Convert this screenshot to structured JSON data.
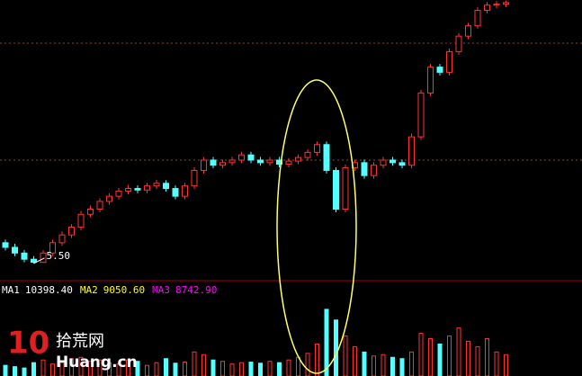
{
  "chart_data": {
    "type": "candlestick",
    "up_color": "#ff3232",
    "down_color": "#54ffff",
    "ylim": [
      5.2,
      10.6
    ],
    "low_annotation": "5.50",
    "open": [
      5.9,
      5.81,
      5.7,
      5.58,
      5.52,
      5.7,
      5.9,
      6.05,
      6.2,
      6.45,
      6.55,
      6.7,
      6.8,
      6.9,
      6.95,
      6.92,
      7.0,
      7.05,
      6.95,
      6.8,
      7.0,
      7.3,
      7.5,
      7.4,
      7.45,
      7.5,
      7.6,
      7.5,
      7.45,
      7.5,
      7.42,
      7.48,
      7.55,
      7.65,
      7.8,
      7.3,
      6.55,
      7.35,
      7.45,
      7.2,
      7.4,
      7.5,
      7.45,
      7.4,
      7.95,
      8.8,
      9.3,
      9.2,
      9.6,
      9.9,
      10.1,
      10.4,
      10.5,
      10.52
    ],
    "high": [
      5.96,
      5.88,
      5.76,
      5.64,
      5.76,
      5.96,
      6.12,
      6.26,
      6.52,
      6.62,
      6.76,
      6.86,
      6.96,
      7.02,
      7.01,
      7.06,
      7.12,
      7.11,
      7.01,
      7.06,
      7.36,
      7.56,
      7.56,
      7.51,
      7.56,
      7.66,
      7.66,
      7.56,
      7.56,
      7.56,
      7.54,
      7.61,
      7.71,
      7.86,
      7.86,
      7.36,
      7.41,
      7.51,
      7.51,
      7.46,
      7.56,
      7.56,
      7.51,
      8.01,
      8.86,
      9.36,
      9.36,
      9.66,
      9.96,
      10.16,
      10.46,
      10.56,
      10.58,
      10.59
    ],
    "low": [
      5.75,
      5.64,
      5.52,
      5.5,
      5.51,
      5.64,
      5.84,
      5.99,
      6.14,
      6.39,
      6.49,
      6.64,
      6.74,
      6.84,
      6.86,
      6.86,
      6.94,
      6.89,
      6.74,
      6.74,
      6.94,
      7.24,
      7.34,
      7.34,
      7.39,
      7.44,
      7.44,
      7.39,
      7.39,
      7.36,
      7.36,
      7.42,
      7.49,
      7.59,
      7.24,
      6.49,
      6.49,
      7.29,
      7.14,
      7.14,
      7.34,
      7.39,
      7.34,
      7.34,
      7.89,
      8.74,
      9.14,
      9.14,
      9.54,
      9.84,
      10.04,
      10.34,
      10.44,
      10.46
    ],
    "close": [
      5.81,
      5.7,
      5.58,
      5.52,
      5.7,
      5.9,
      6.05,
      6.2,
      6.45,
      6.55,
      6.7,
      6.8,
      6.9,
      6.95,
      6.92,
      7.0,
      7.05,
      6.95,
      6.8,
      7.0,
      7.3,
      7.5,
      7.4,
      7.45,
      7.5,
      7.6,
      7.5,
      7.45,
      7.5,
      7.42,
      7.48,
      7.55,
      7.65,
      7.8,
      7.3,
      6.55,
      7.35,
      7.45,
      7.2,
      7.4,
      7.5,
      7.45,
      7.4,
      7.95,
      8.8,
      9.3,
      9.2,
      9.6,
      9.9,
      10.1,
      10.4,
      10.5,
      10.52,
      10.55
    ],
    "volume": [
      4000,
      3500,
      3000,
      5000,
      6000,
      4500,
      5000,
      6500,
      7000,
      5500,
      6000,
      5000,
      4500,
      6000,
      5500,
      4000,
      5000,
      6500,
      4800,
      5200,
      9000,
      8000,
      6000,
      5500,
      4500,
      5000,
      5200,
      4800,
      5500,
      5000,
      6000,
      7000,
      8500,
      12000,
      25000,
      21000,
      15000,
      11000,
      9000,
      7500,
      8000,
      7000,
      6500,
      9000,
      16000,
      14000,
      12000,
      15000,
      18000,
      13000,
      11000,
      14000,
      9000,
      8000
    ],
    "volume_ylim": [
      0,
      28000
    ],
    "ma_legend": [
      {
        "name": "MA1",
        "value": "10398.40",
        "color": "#ffffff"
      },
      {
        "name": "MA2",
        "value": "9050.60",
        "color": "#ffff00"
      },
      {
        "name": "MA3",
        "value": "8742.90",
        "color": "#ff00ff"
      }
    ]
  },
  "watermark": {
    "logo": "10",
    "name": "拾荒网",
    "site": "Huang.cn"
  }
}
